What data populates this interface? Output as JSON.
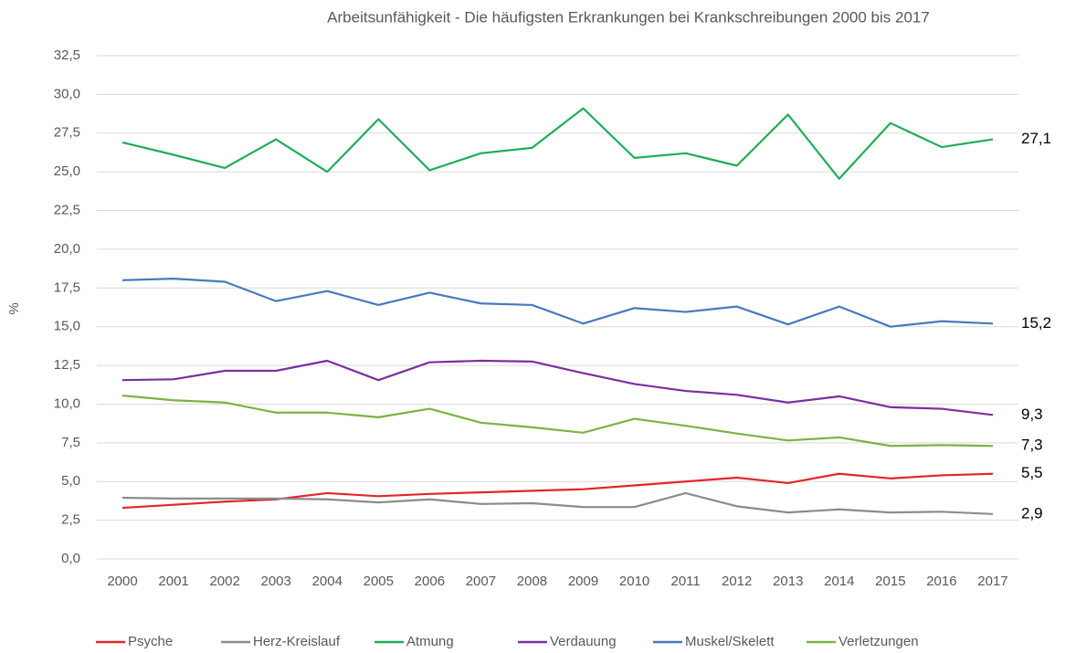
{
  "chart_data": {
    "type": "line",
    "title": "Arbeitsunfähigkeit - Die häufigsten Erkrankungen bei Krankschreibungen 2000 bis 2017",
    "y_label": "%",
    "categories": [
      "2000",
      "2001",
      "2002",
      "2003",
      "2004",
      "2005",
      "2006",
      "2007",
      "2008",
      "2009",
      "2010",
      "2011",
      "2012",
      "2013",
      "2014",
      "2015",
      "2016",
      "2017"
    ],
    "ylim": [
      0,
      32.5
    ],
    "yticks": [
      {
        "value": 0,
        "label": "0,0"
      },
      {
        "value": 2.5,
        "label": "2,5"
      },
      {
        "value": 5,
        "label": "5,0"
      },
      {
        "value": 7.5,
        "label": "7,5"
      },
      {
        "value": 10,
        "label": "10,0"
      },
      {
        "value": 12.5,
        "label": "12,5"
      },
      {
        "value": 15,
        "label": "15,0"
      },
      {
        "value": 17.5,
        "label": "17,5"
      },
      {
        "value": 20,
        "label": "20,0"
      },
      {
        "value": 22.5,
        "label": "22,5"
      },
      {
        "value": 25,
        "label": "25,0"
      },
      {
        "value": 27.5,
        "label": "27,5"
      },
      {
        "value": 30,
        "label": "30,0"
      },
      {
        "value": 32.5,
        "label": "32,5"
      }
    ],
    "grid": true,
    "legend": "bottom",
    "series": [
      {
        "name": "Psyche",
        "color": "#e3262a",
        "values": [
          3.3,
          3.5,
          3.7,
          3.85,
          4.25,
          4.05,
          4.2,
          4.3,
          4.4,
          4.5,
          4.75,
          5.0,
          5.25,
          4.9,
          5.5,
          5.2,
          5.4,
          5.5
        ],
        "value_labels": [
          null,
          null,
          null,
          null,
          null,
          null,
          null,
          null,
          null,
          null,
          null,
          null,
          null,
          null,
          null,
          null,
          null,
          "5,5"
        ]
      },
      {
        "name": "Herz-Kreislauf",
        "color": "#8c8c8c",
        "values": [
          3.95,
          3.9,
          3.9,
          3.9,
          3.85,
          3.65,
          3.85,
          3.55,
          3.6,
          3.35,
          3.35,
          4.25,
          3.4,
          3.0,
          3.2,
          3.0,
          3.05,
          2.9
        ],
        "value_labels": [
          null,
          null,
          null,
          null,
          null,
          null,
          null,
          null,
          null,
          null,
          null,
          null,
          null,
          null,
          null,
          null,
          null,
          "2,9"
        ]
      },
      {
        "name": "Atmung",
        "color": "#1fad5a",
        "values": [
          26.9,
          26.1,
          25.25,
          27.1,
          25.0,
          28.4,
          25.1,
          26.2,
          26.55,
          29.1,
          25.9,
          26.2,
          25.4,
          28.7,
          24.55,
          28.15,
          26.6,
          27.1
        ],
        "value_labels": [
          null,
          null,
          null,
          null,
          null,
          null,
          null,
          null,
          null,
          null,
          null,
          null,
          null,
          null,
          null,
          null,
          null,
          "27,1"
        ]
      },
      {
        "name": "Verdauung",
        "color": "#7b2fa0",
        "values": [
          11.55,
          11.6,
          12.15,
          12.15,
          12.8,
          11.55,
          12.7,
          12.8,
          12.75,
          12.0,
          11.3,
          10.85,
          10.6,
          10.1,
          10.5,
          9.8,
          9.7,
          9.3
        ],
        "value_labels": [
          null,
          null,
          null,
          null,
          null,
          null,
          null,
          null,
          null,
          null,
          null,
          null,
          null,
          null,
          null,
          null,
          null,
          "9,3"
        ]
      },
      {
        "name": "Muskel/Skelett",
        "color": "#4a78be",
        "values": [
          18.0,
          18.1,
          17.9,
          16.65,
          17.3,
          16.4,
          17.2,
          16.5,
          16.4,
          15.2,
          16.2,
          15.95,
          16.3,
          15.15,
          16.3,
          15.0,
          15.35,
          15.2
        ],
        "value_labels": [
          null,
          null,
          null,
          null,
          null,
          null,
          null,
          null,
          null,
          null,
          null,
          null,
          null,
          null,
          null,
          null,
          null,
          "15,2"
        ]
      },
      {
        "name": "Verletzungen",
        "color": "#7cb342",
        "values": [
          10.55,
          10.25,
          10.1,
          9.45,
          9.45,
          9.15,
          9.7,
          8.8,
          8.5,
          8.15,
          9.05,
          8.6,
          8.1,
          7.65,
          7.85,
          7.3,
          7.35,
          7.3
        ],
        "value_labels": [
          null,
          null,
          null,
          null,
          null,
          null,
          null,
          null,
          null,
          null,
          null,
          null,
          null,
          null,
          null,
          null,
          null,
          "7,3"
        ]
      }
    ]
  }
}
